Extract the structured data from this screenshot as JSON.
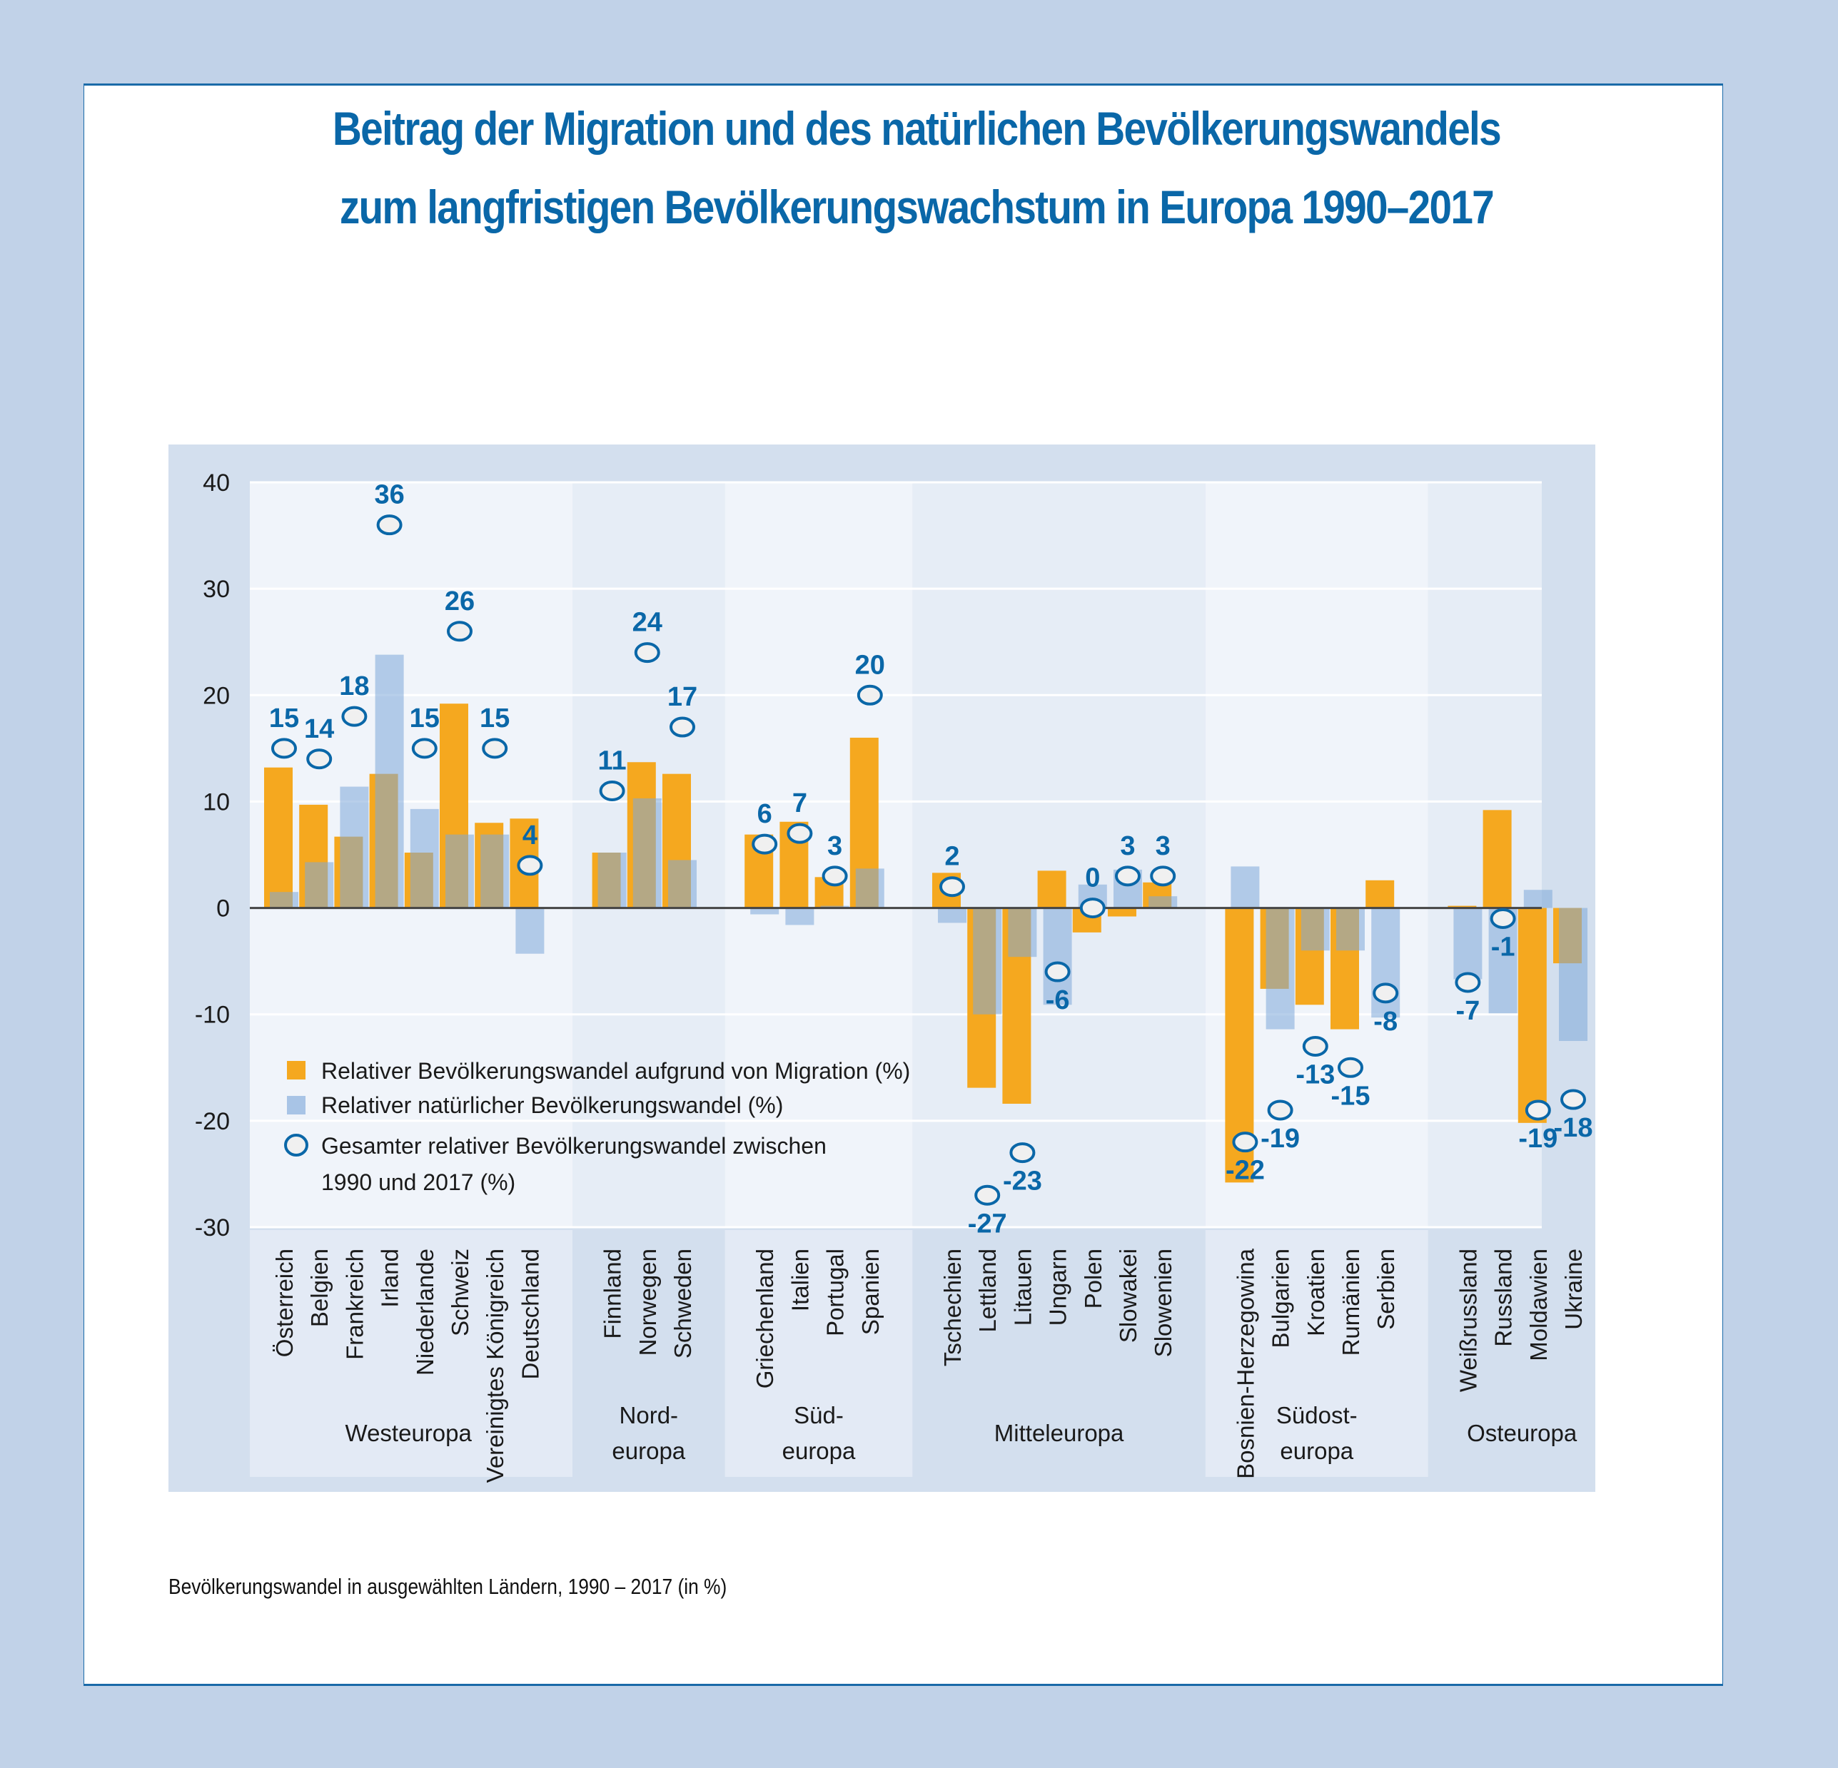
{
  "page": {
    "title_line1": "Beitrag der Migration und des natürlichen Bevölkerungswandels",
    "title_line2": "zum langfristigen Bevölkerungswachstum in Europa 1990–2017",
    "caption": "Bevölkerungswandel in ausgewählten Ländern, 1990 – 2017 (in %)"
  },
  "colors": {
    "migration": "#f5a81f",
    "natural": "#a8c4e6",
    "overlap": "#c0a06e",
    "total_marker": "#0a67a8",
    "panel_bg": "#d3dfee",
    "plot_bg_light": "#f0f4fa",
    "plot_bg_dark": "#e6edf6"
  },
  "chart_data": {
    "type": "bar",
    "title": "Beitrag der Migration und des natürlichen Bevölkerungswandels zum langfristigen Bevölkerungswachstum in Europa 1990–2017",
    "xlabel": "",
    "ylabel": "",
    "ylim": [
      -30,
      40
    ],
    "yticks": [
      40,
      30,
      20,
      10,
      0,
      -10,
      -20,
      -30
    ],
    "grid": true,
    "legend_position": "lower-left",
    "legend": [
      {
        "key": "migration",
        "label": "Relativer Bevölkerungswandel aufgrund von Migration (%)"
      },
      {
        "key": "natural",
        "label": "Relativer natürlicher Bevölkerungswandel (%)"
      },
      {
        "key": "total",
        "label_line1": "Gesamter relativer Bevölkerungswandel zwischen",
        "label_line2": "1990 und 2017 (%)"
      }
    ],
    "groups": [
      {
        "name_line1": "Westeuropa",
        "name_line2": "",
        "countries": [
          {
            "name": "Österreich",
            "migration": 13.2,
            "natural": 1.5,
            "total": 15
          },
          {
            "name": "Belgien",
            "migration": 9.7,
            "natural": 4.3,
            "total": 14
          },
          {
            "name": "Frankreich",
            "migration": 6.7,
            "natural": 11.4,
            "total": 18
          },
          {
            "name": "Irland",
            "migration": 12.6,
            "natural": 23.8,
            "total": 36
          },
          {
            "name": "Niederlande",
            "migration": 5.2,
            "natural": 9.3,
            "total": 15
          },
          {
            "name": "Schweiz",
            "migration": 19.2,
            "natural": 6.9,
            "total": 26
          },
          {
            "name": "Vereinigtes Königreich",
            "migration": 8.0,
            "natural": 6.9,
            "total": 15
          },
          {
            "name": "Deutschland",
            "migration": 8.4,
            "natural": -4.3,
            "total": 4
          }
        ]
      },
      {
        "name_line1": "Nord-",
        "name_line2": "europa",
        "countries": [
          {
            "name": "Finnland",
            "migration": 5.2,
            "natural": 5.2,
            "total": 11
          },
          {
            "name": "Norwegen",
            "migration": 13.7,
            "natural": 10.3,
            "total": 24
          },
          {
            "name": "Schweden",
            "migration": 12.6,
            "natural": 4.5,
            "total": 17
          }
        ]
      },
      {
        "name_line1": "Süd-",
        "name_line2": "europa",
        "countries": [
          {
            "name": "Griechenland",
            "migration": 6.9,
            "natural": -0.6,
            "total": 6
          },
          {
            "name": "Italien",
            "migration": 8.1,
            "natural": -1.6,
            "total": 7
          },
          {
            "name": "Portugal",
            "migration": 2.9,
            "natural": 0.2,
            "total": 3
          },
          {
            "name": "Spanien",
            "migration": 16.0,
            "natural": 3.7,
            "total": 20
          }
        ]
      },
      {
        "name_line1": "Mitteleuropa",
        "name_line2": "",
        "countries": [
          {
            "name": "Tschechien",
            "migration": 3.3,
            "natural": -1.4,
            "total": 2
          },
          {
            "name": "Lettland",
            "migration": -16.9,
            "natural": -10.0,
            "total": -27
          },
          {
            "name": "Litauen",
            "migration": -18.4,
            "natural": -4.6,
            "total": -23
          },
          {
            "name": "Ungarn",
            "migration": 3.5,
            "natural": -9.1,
            "total": -6
          },
          {
            "name": "Polen",
            "migration": -2.3,
            "natural": 2.2,
            "total": 0
          },
          {
            "name": "Slowakei",
            "migration": -0.8,
            "natural": 3.6,
            "total": 3
          },
          {
            "name": "Slowenien",
            "migration": 2.4,
            "natural": 1.1,
            "total": 3
          }
        ]
      },
      {
        "name_line1": "Südost-",
        "name_line2": "europa",
        "countries": [
          {
            "name": "Bosnien-Herzegowina",
            "migration": -25.8,
            "natural": 3.9,
            "total": -22
          },
          {
            "name": "Bulgarien",
            "migration": -7.6,
            "natural": -11.4,
            "total": -19
          },
          {
            "name": "Kroatien",
            "migration": -9.1,
            "natural": -4.0,
            "total": -13
          },
          {
            "name": "Rumänien",
            "migration": -11.4,
            "natural": -4.0,
            "total": -15
          },
          {
            "name": "Serbien",
            "migration": 2.6,
            "natural": -10.3,
            "total": -8
          }
        ]
      },
      {
        "name_line1": "Osteuropa",
        "name_line2": "",
        "countries": [
          {
            "name": "Weißrussland",
            "migration": 0.2,
            "natural": -6.7,
            "total": -7
          },
          {
            "name": "Russland",
            "migration": 9.2,
            "natural": -9.9,
            "total": -1
          },
          {
            "name": "Moldawien",
            "migration": -20.2,
            "natural": 1.7,
            "total": -19
          },
          {
            "name": "Ukraine",
            "migration": -5.2,
            "natural": -12.5,
            "total": -18
          }
        ]
      }
    ]
  }
}
